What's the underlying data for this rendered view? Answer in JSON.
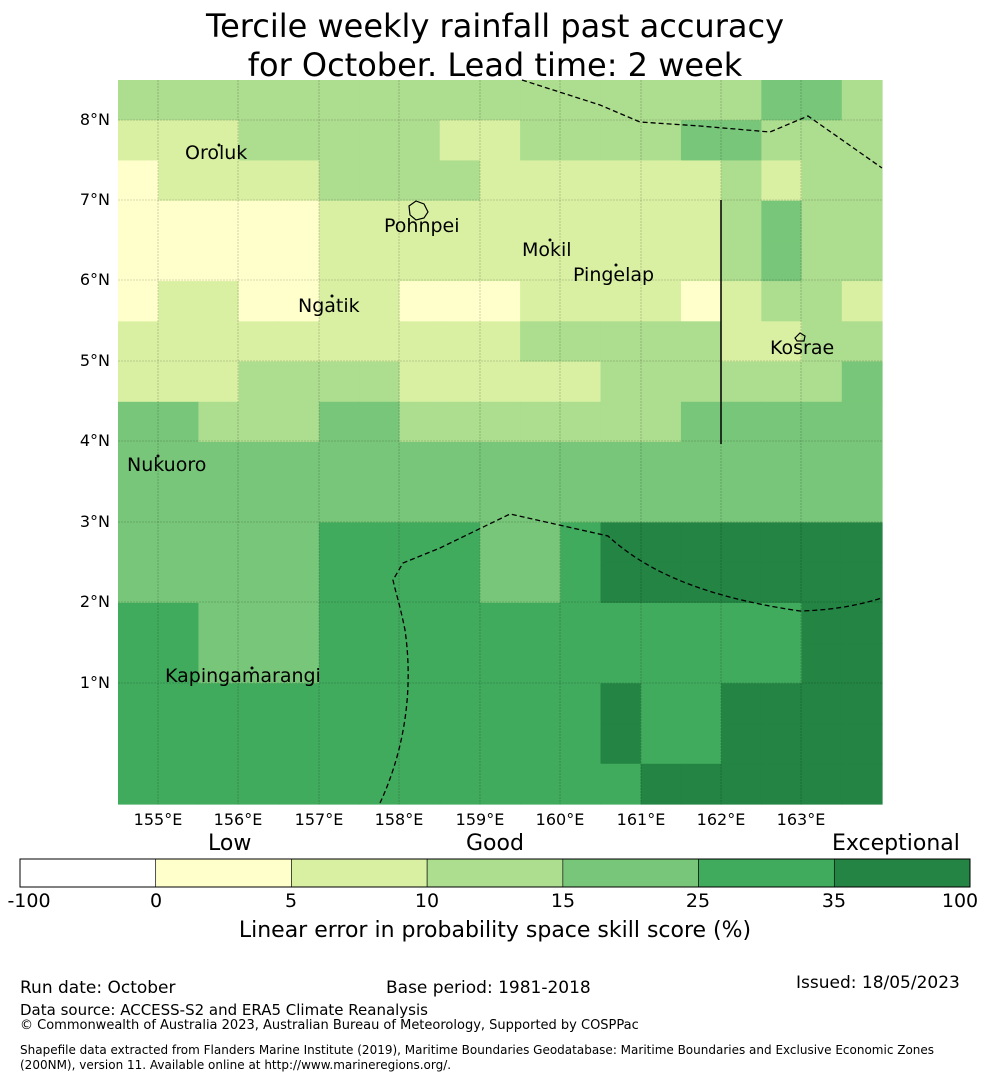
{
  "title": {
    "line1": "Tercile weekly rainfall past accuracy",
    "line2": "for October. Lead time: 2 week"
  },
  "map": {
    "lat_ticks": [
      "8°N",
      "7°N",
      "6°N",
      "5°N",
      "4°N",
      "3°N",
      "2°N",
      "1°N"
    ],
    "lon_ticks": [
      "155°E",
      "156°E",
      "157°E",
      "158°E",
      "159°E",
      "160°E",
      "161°E",
      "162°E",
      "163°E"
    ],
    "places": {
      "oroluk": "Oroluk",
      "pohnpei": "Pohnpei",
      "mokil": "Mokil",
      "pingelap": "Pingelap",
      "ngatik": "Ngatik",
      "kosrae": "Kosrae",
      "nukuoro": "Nukuoro",
      "kapingamarangi": "Kapingamarangi"
    },
    "grid_category_rows": [
      "2222222222222222332",
      "1112222211222233222",
      "0111122221111112122",
      "0000011111111112322",
      "0000011111111112322",
      "0110011000111101221",
      "1111111111222221122",
      "1112222111112222223",
      "3322233222222233333",
      "3333333333333333333",
      "3333333333333333333",
      "3333344443345555555",
      "3333344443345555555",
      "4433344444444444455",
      "4433344444444444455",
      "4444444444445445555",
      "4444444444445445555",
      "4444444444444555555"
    ],
    "grid_note": "Rows north to south, columns west to east; digits index the colorbar categories (0=0-5 ... 5=35-100)."
  },
  "colorbar": {
    "bins": [
      {
        "from": -100,
        "to": 0,
        "color": "#ffffff"
      },
      {
        "from": 0,
        "to": 5,
        "color": "#ffffcc"
      },
      {
        "from": 5,
        "to": 10,
        "color": "#d9f0a3"
      },
      {
        "from": 10,
        "to": 15,
        "color": "#addd8e"
      },
      {
        "from": 15,
        "to": 25,
        "color": "#78c679"
      },
      {
        "from": 25,
        "to": 35,
        "color": "#41ab5d"
      },
      {
        "from": 35,
        "to": 100,
        "color": "#238443"
      }
    ],
    "tick_labels": [
      "-100",
      "0",
      "5",
      "10",
      "15",
      "25",
      "35",
      "100"
    ],
    "category_low": "Low",
    "category_good": "Good",
    "category_exceptional": "Exceptional",
    "axis_label": "Linear error in probability space skill score (%)"
  },
  "footer": {
    "run_date": "Run date: October",
    "base_period": "Base period: 1981-2018",
    "issued": "Issued: 18/05/2023",
    "data_source": "Data source: ACCESS-S2 and ERA5 Climate Reanalysis",
    "copyright": "© Commonwealth of Australia 2023, Australian Bureau of Meteorology, Supported by COSPPac",
    "shapefile_line1": "Shapefile data extracted from Flanders Marine Institute (2019), Maritime Boundaries Geodatabase: Maritime Boundaries and Exclusive Economic Zones",
    "shapefile_line2": "(200NM), version 11. Available online at http://www.marineregions.org/."
  }
}
